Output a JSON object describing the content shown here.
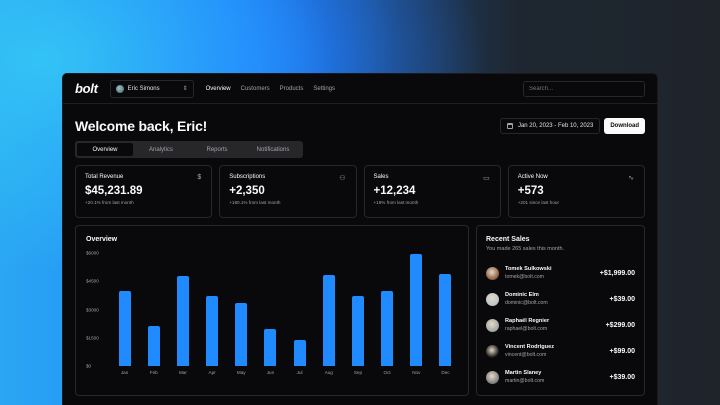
{
  "nav": {
    "logo": "bolt",
    "team": "Eric Simons",
    "links": [
      {
        "label": "Overview",
        "active": true
      },
      {
        "label": "Customers",
        "active": false
      },
      {
        "label": "Products",
        "active": false
      },
      {
        "label": "Settings",
        "active": false
      }
    ],
    "search_placeholder": "Search..."
  },
  "header": {
    "title": "Welcome back, Eric!",
    "date_range": "Jan 20, 2023 - Feb 10, 2023",
    "download_label": "Download"
  },
  "tabs": [
    {
      "label": "Overview",
      "active": true
    },
    {
      "label": "Analytics",
      "active": false
    },
    {
      "label": "Reports",
      "active": false
    },
    {
      "label": "Notifications",
      "active": false
    }
  ],
  "cards": [
    {
      "title": "Total Revenue",
      "icon": "dollar-icon",
      "glyph": "$",
      "value": "$45,231.89",
      "sub": "+20.1% from last month"
    },
    {
      "title": "Subscriptions",
      "icon": "users-icon",
      "glyph": "⚇",
      "value": "+2,350",
      "sub": "+180.1% from last month"
    },
    {
      "title": "Sales",
      "icon": "credit-card-icon",
      "glyph": "▭",
      "value": "+12,234",
      "sub": "+19% from last month"
    },
    {
      "title": "Active Now",
      "icon": "activity-icon",
      "glyph": "∿",
      "value": "+573",
      "sub": "+201 since last hour"
    }
  ],
  "overview": {
    "title": "Overview",
    "bar_color": "#1f8bff"
  },
  "chart_data": {
    "type": "bar",
    "title": "Overview",
    "categories": [
      "Jan",
      "Feb",
      "Mar",
      "Apr",
      "May",
      "Jun",
      "Jul",
      "Aug",
      "Sep",
      "Oct",
      "Nov",
      "Dec"
    ],
    "values": [
      4000,
      2100,
      4800,
      3700,
      3350,
      1950,
      1400,
      4850,
      3700,
      4000,
      5950,
      4900
    ],
    "y_ticks": [
      "$0",
      "$1500",
      "$3000",
      "$4500",
      "$6000"
    ],
    "ylim": [
      0,
      6000
    ],
    "xlabel": "",
    "ylabel": "",
    "grid": false,
    "legend": "none"
  },
  "recent_sales": {
    "title": "Recent Sales",
    "subtitle": "You made 265 sales this month.",
    "items": [
      {
        "name": "Tomek Sulkowski",
        "email": "tomek@bolt.com",
        "amount": "+$1,999.00",
        "avatar_color": "#8a5a3a"
      },
      {
        "name": "Dominic Elm",
        "email": "dominic@bolt.com",
        "amount": "+$39.00",
        "avatar_color": "#b8c4cc"
      },
      {
        "name": "Raphaël Regnier",
        "email": "raphael@bolt.com",
        "amount": "+$299.00",
        "avatar_color": "#9aa6a0"
      },
      {
        "name": "Vincent Rodriguez",
        "email": "vincent@bolt.com",
        "amount": "+$99.00",
        "avatar_color": "#111111"
      },
      {
        "name": "Martin Slaney",
        "email": "martin@bolt.com",
        "amount": "+$39.00",
        "avatar_color": "#7a7a7a"
      }
    ]
  }
}
